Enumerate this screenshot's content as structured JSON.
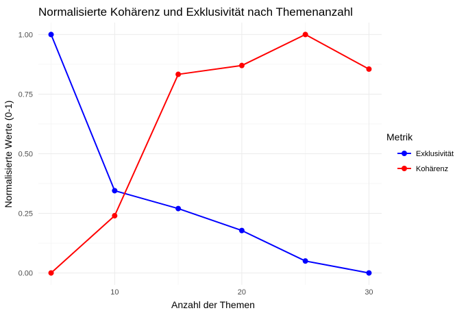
{
  "chart_data": {
    "type": "line",
    "title": "Normalisierte Kohärenz und Exklusivität nach Themenanzahl",
    "xlabel": "Anzahl der Themen",
    "ylabel": "Normalisierte Werte (0-1)",
    "x": [
      5,
      10,
      15,
      20,
      25,
      30
    ],
    "xlim": [
      4,
      31
    ],
    "ylim": [
      -0.05,
      1.05
    ],
    "xticks": [
      10,
      20,
      30
    ],
    "yticks": [
      0,
      0.25,
      0.5,
      0.75,
      1
    ],
    "ytick_labels": [
      "0.00",
      "0.25",
      "0.50",
      "0.75",
      "1.00"
    ],
    "grid": true,
    "legend": {
      "title": "Metrik",
      "position": "right"
    },
    "series": [
      {
        "name": "Exklusivität",
        "color": "#0000ff",
        "values": [
          1.0,
          0.345,
          0.27,
          0.178,
          0.05,
          0.0
        ]
      },
      {
        "name": "Kohärenz",
        "color": "#ff0000",
        "values": [
          0.0,
          0.24,
          0.833,
          0.87,
          1.0,
          0.855
        ]
      }
    ]
  }
}
